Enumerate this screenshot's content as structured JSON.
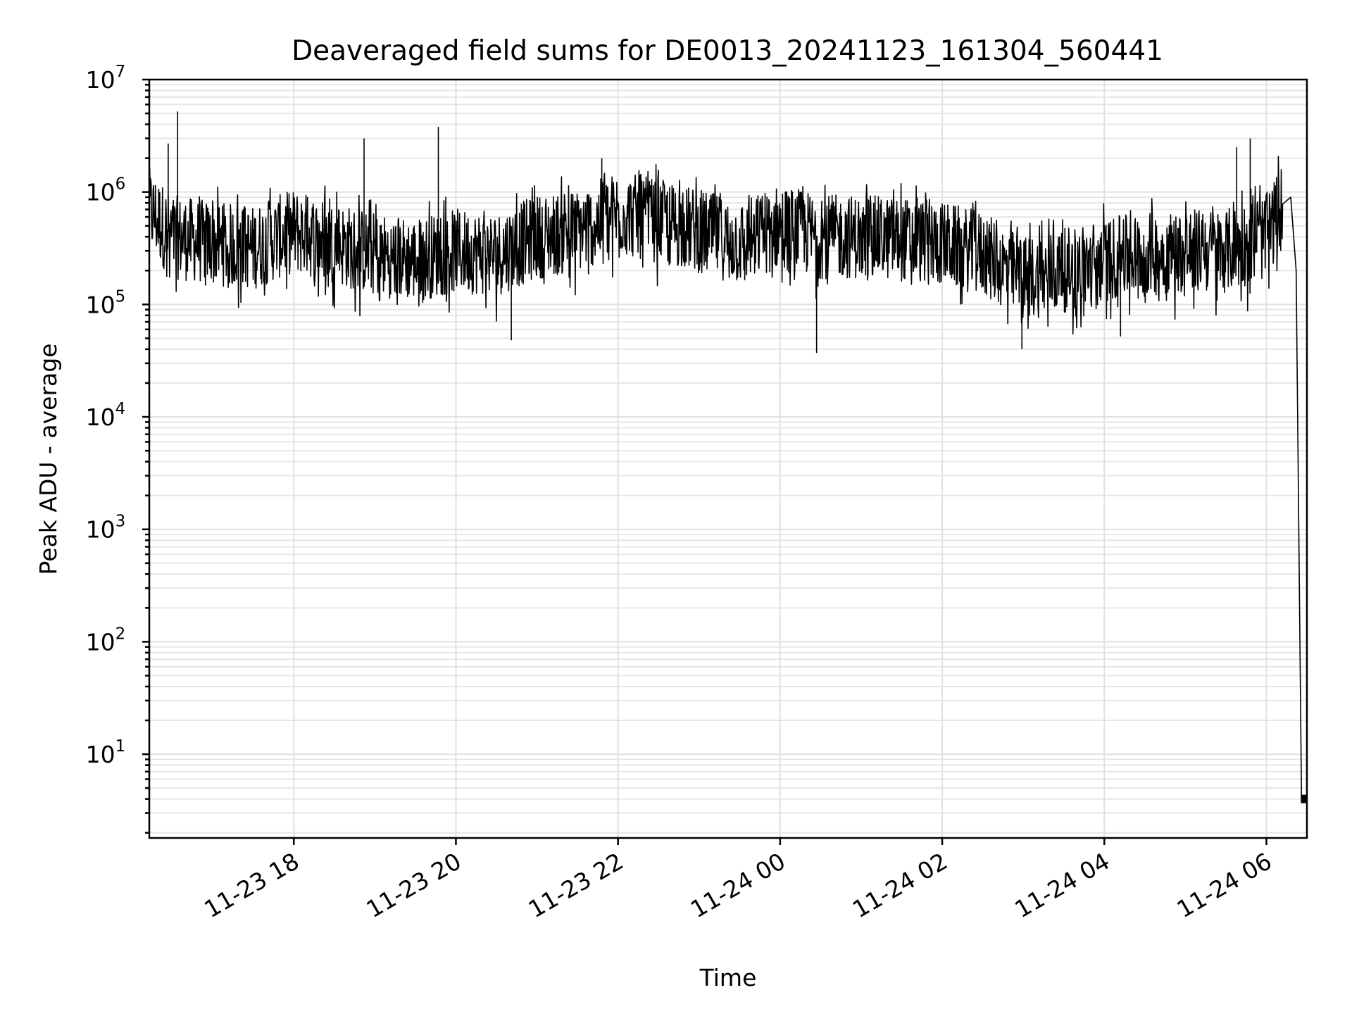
{
  "chart_data": {
    "type": "line",
    "title": "Deaveraged field sums for DE0013_20241123_161304_560441",
    "xlabel": "Time",
    "ylabel": "Peak ADU - average",
    "yscale": "log",
    "ylim": [
      1.8,
      10000000
    ],
    "xlim": [
      "2024-11-23 16:13",
      "2024-11-24 06:30"
    ],
    "grid": true,
    "line_color": "#000000",
    "y_tick_labels": [
      {
        "base": "10",
        "exp": "1",
        "value": 10
      },
      {
        "base": "10",
        "exp": "2",
        "value": 100
      },
      {
        "base": "10",
        "exp": "3",
        "value": 1000
      },
      {
        "base": "10",
        "exp": "4",
        "value": 10000
      },
      {
        "base": "10",
        "exp": "5",
        "value": 100000
      },
      {
        "base": "10",
        "exp": "6",
        "value": 1000000
      },
      {
        "base": "10",
        "exp": "7",
        "value": 10000000
      }
    ],
    "x_ticks": [
      {
        "label": "11-23 18",
        "time": "2024-11-23 18:00"
      },
      {
        "label": "11-23 20",
        "time": "2024-11-23 20:00"
      },
      {
        "label": "11-23 22",
        "time": "2024-11-23 22:00"
      },
      {
        "label": "11-24 00",
        "time": "2024-11-24 00:00"
      },
      {
        "label": "11-24 02",
        "time": "2024-11-24 02:00"
      },
      {
        "label": "11-24 04",
        "time": "2024-11-24 04:00"
      },
      {
        "label": "11-24 06",
        "time": "2024-11-24 06:00"
      }
    ],
    "series": [
      {
        "x": [
          "2024-11-23 16:13",
          "2024-11-23 16:30",
          "2024-11-23 17:00",
          "2024-11-23 17:30",
          "2024-11-23 18:00",
          "2024-11-23 18:30",
          "2024-11-23 19:00",
          "2024-11-23 19:30",
          "2024-11-23 20:00",
          "2024-11-23 20:30",
          "2024-11-23 21:00",
          "2024-11-23 21:30",
          "2024-11-23 22:00",
          "2024-11-23 22:30",
          "2024-11-23 23:00",
          "2024-11-23 23:30",
          "2024-11-24 00:00",
          "2024-11-24 00:30",
          "2024-11-24 01:00",
          "2024-11-24 01:30",
          "2024-11-24 02:00",
          "2024-11-24 02:30",
          "2024-11-24 03:00",
          "2024-11-24 03:30",
          "2024-11-24 04:00",
          "2024-11-24 04:30",
          "2024-11-24 05:00",
          "2024-11-24 05:30",
          "2024-11-24 06:00",
          "2024-11-24 06:10",
          "2024-11-24 06:18",
          "2024-11-24 06:22",
          "2024-11-24 06:26",
          "2024-11-24 06:30"
        ],
        "y": [
          700000,
          400000,
          350000,
          320000,
          450000,
          350000,
          280000,
          250000,
          300000,
          280000,
          400000,
          450000,
          650000,
          550000,
          450000,
          350000,
          500000,
          400000,
          400000,
          380000,
          350000,
          280000,
          170000,
          200000,
          250000,
          280000,
          300000,
          300000,
          400000,
          700000,
          900000,
          200000,
          4,
          4
        ]
      }
    ],
    "spikes": [
      {
        "time": "2024-11-23 16:34",
        "y": 5200000
      },
      {
        "time": "2024-11-23 16:27",
        "y": 2700000
      },
      {
        "time": "2024-11-23 18:52",
        "y": 3000000
      },
      {
        "time": "2024-11-23 19:47",
        "y": 3800000
      },
      {
        "time": "2024-11-23 21:48",
        "y": 2000000
      },
      {
        "time": "2024-11-24 05:48",
        "y": 3000000
      },
      {
        "time": "2024-11-24 05:38",
        "y": 2500000
      }
    ],
    "dips": [
      {
        "time": "2024-11-23 20:41",
        "y": 48000
      },
      {
        "time": "2024-11-24 00:27",
        "y": 37000
      },
      {
        "time": "2024-11-24 02:59",
        "y": 40000
      },
      {
        "time": "2024-11-24 04:12",
        "y": 52000
      }
    ]
  }
}
